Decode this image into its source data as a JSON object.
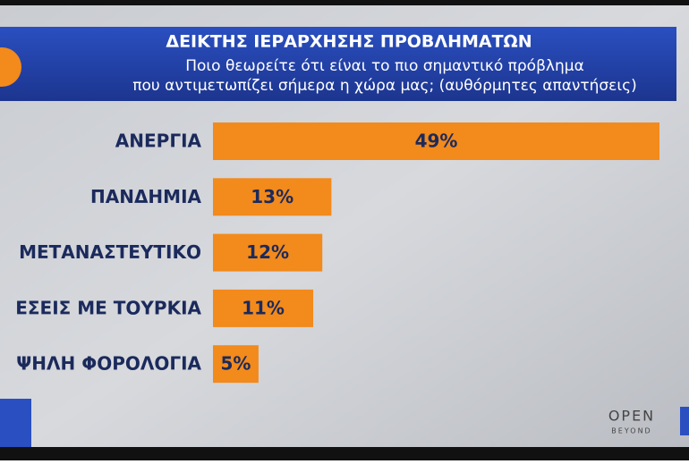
{
  "chart_data": {
    "type": "bar",
    "orientation": "horizontal",
    "title": "ΔΕΙΚΤΗΣ ΙΕΡΑΡΧΗΣΗΣ ΠΡΟΒΛΗΜΑΤΩΝ",
    "subtitle": [
      "Ποιο θεωρείτε ότι είναι το πιο σημαντικό πρόβλημα",
      "που αντιμετωπίζει σήμερα η χώρα μας; (αυθόρμητες απαντήσεις)"
    ],
    "categories": [
      "ΑΝΕΡΓΙΑ",
      "ΠΑΝΔΗΜΙΑ",
      "ΜΕΤΑΝΑΣΤΕΥΤΙΚΟ",
      "ΕΣΕΙΣ ΜΕ ΤΟΥΡΚΙΑ",
      "ΨΗΛΗ ΦΟΡΟΛΟΓΙΑ"
    ],
    "values": [
      49,
      13,
      12,
      11,
      5
    ],
    "value_labels": [
      "49%",
      "13%",
      "12%",
      "11%",
      "5%"
    ],
    "color": "#f28a1c"
  },
  "channel_logo": {
    "name": "OPEN",
    "tagline": "BEYOND"
  }
}
